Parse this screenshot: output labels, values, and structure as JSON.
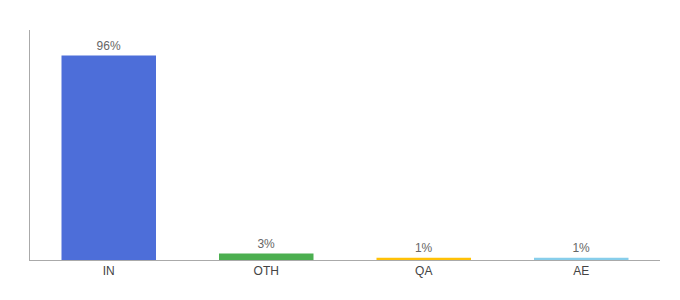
{
  "chart_data": {
    "type": "bar",
    "categories": [
      "IN",
      "OTH",
      "QA",
      "AE"
    ],
    "values": [
      96,
      3,
      1,
      1
    ],
    "value_labels": [
      "96%",
      "3%",
      "1%",
      "1%"
    ],
    "colors": [
      "#4d6ed9",
      "#4caf50",
      "#ffc107",
      "#87ceeb"
    ],
    "ylim": [
      0,
      108
    ],
    "data_labels": true,
    "tick_labels": "x",
    "grid": false
  }
}
